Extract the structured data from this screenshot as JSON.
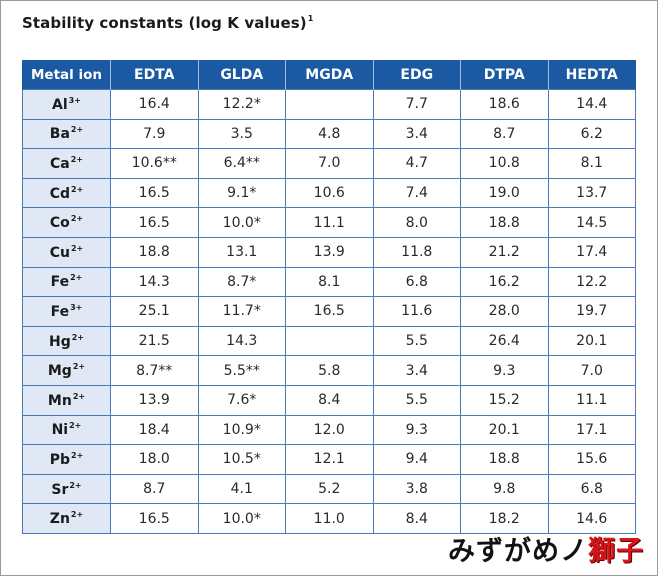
{
  "title": {
    "text": "Stability constants (log K values)",
    "footnote_mark": "1"
  },
  "table": {
    "headers": [
      "Metal ion",
      "EDTA",
      "GLDA",
      "MGDA",
      "EDG",
      "DTPA",
      "HEDTA"
    ],
    "rows": [
      {
        "ion": "Al",
        "charge": "3+",
        "values": [
          "16.4",
          "12.2*",
          "",
          "7.7",
          "18.6",
          "14.4"
        ]
      },
      {
        "ion": "Ba",
        "charge": "2+",
        "values": [
          "7.9",
          "3.5",
          "4.8",
          "3.4",
          "8.7",
          "6.2"
        ]
      },
      {
        "ion": "Ca",
        "charge": "2+",
        "values": [
          "10.6**",
          "6.4**",
          "7.0",
          "4.7",
          "10.8",
          "8.1"
        ]
      },
      {
        "ion": "Cd",
        "charge": "2+",
        "values": [
          "16.5",
          "9.1*",
          "10.6",
          "7.4",
          "19.0",
          "13.7"
        ]
      },
      {
        "ion": "Co",
        "charge": "2+",
        "values": [
          "16.5",
          "10.0*",
          "11.1",
          "8.0",
          "18.8",
          "14.5"
        ]
      },
      {
        "ion": "Cu",
        "charge": "2+",
        "values": [
          "18.8",
          "13.1",
          "13.9",
          "11.8",
          "21.2",
          "17.4"
        ]
      },
      {
        "ion": "Fe",
        "charge": "2+",
        "values": [
          "14.3",
          "8.7*",
          "8.1",
          "6.8",
          "16.2",
          "12.2"
        ]
      },
      {
        "ion": "Fe",
        "charge": "3+",
        "values": [
          "25.1",
          "11.7*",
          "16.5",
          "11.6",
          "28.0",
          "19.7"
        ]
      },
      {
        "ion": "Hg",
        "charge": "2+",
        "values": [
          "21.5",
          "14.3",
          "",
          "5.5",
          "26.4",
          "20.1"
        ]
      },
      {
        "ion": "Mg",
        "charge": "2+",
        "values": [
          "8.7**",
          "5.5**",
          "5.8",
          "3.4",
          "9.3",
          "7.0"
        ]
      },
      {
        "ion": "Mn",
        "charge": "2+",
        "values": [
          "13.9",
          "7.6*",
          "8.4",
          "5.5",
          "15.2",
          "11.1"
        ]
      },
      {
        "ion": "Ni",
        "charge": "2+",
        "values": [
          "18.4",
          "10.9*",
          "12.0",
          "9.3",
          "20.1",
          "17.1"
        ]
      },
      {
        "ion": "Pb",
        "charge": "2+",
        "values": [
          "18.0",
          "10.5*",
          "12.1",
          "9.4",
          "18.8",
          "15.6"
        ]
      },
      {
        "ion": "Sr",
        "charge": "2+",
        "values": [
          "8.7",
          "4.1",
          "5.2",
          "3.8",
          "9.8",
          "6.8"
        ]
      },
      {
        "ion": "Zn",
        "charge": "2+",
        "values": [
          "16.5",
          "10.0*",
          "11.0",
          "8.4",
          "18.2",
          "14.6"
        ]
      }
    ]
  },
  "watermark": {
    "part1": "みずがめノ",
    "part2": "獅子"
  },
  "colors": {
    "header_bg": "#1b5aa3",
    "ion_cell_bg": "#dfe8f4",
    "watermark_red": "#d9151c"
  }
}
